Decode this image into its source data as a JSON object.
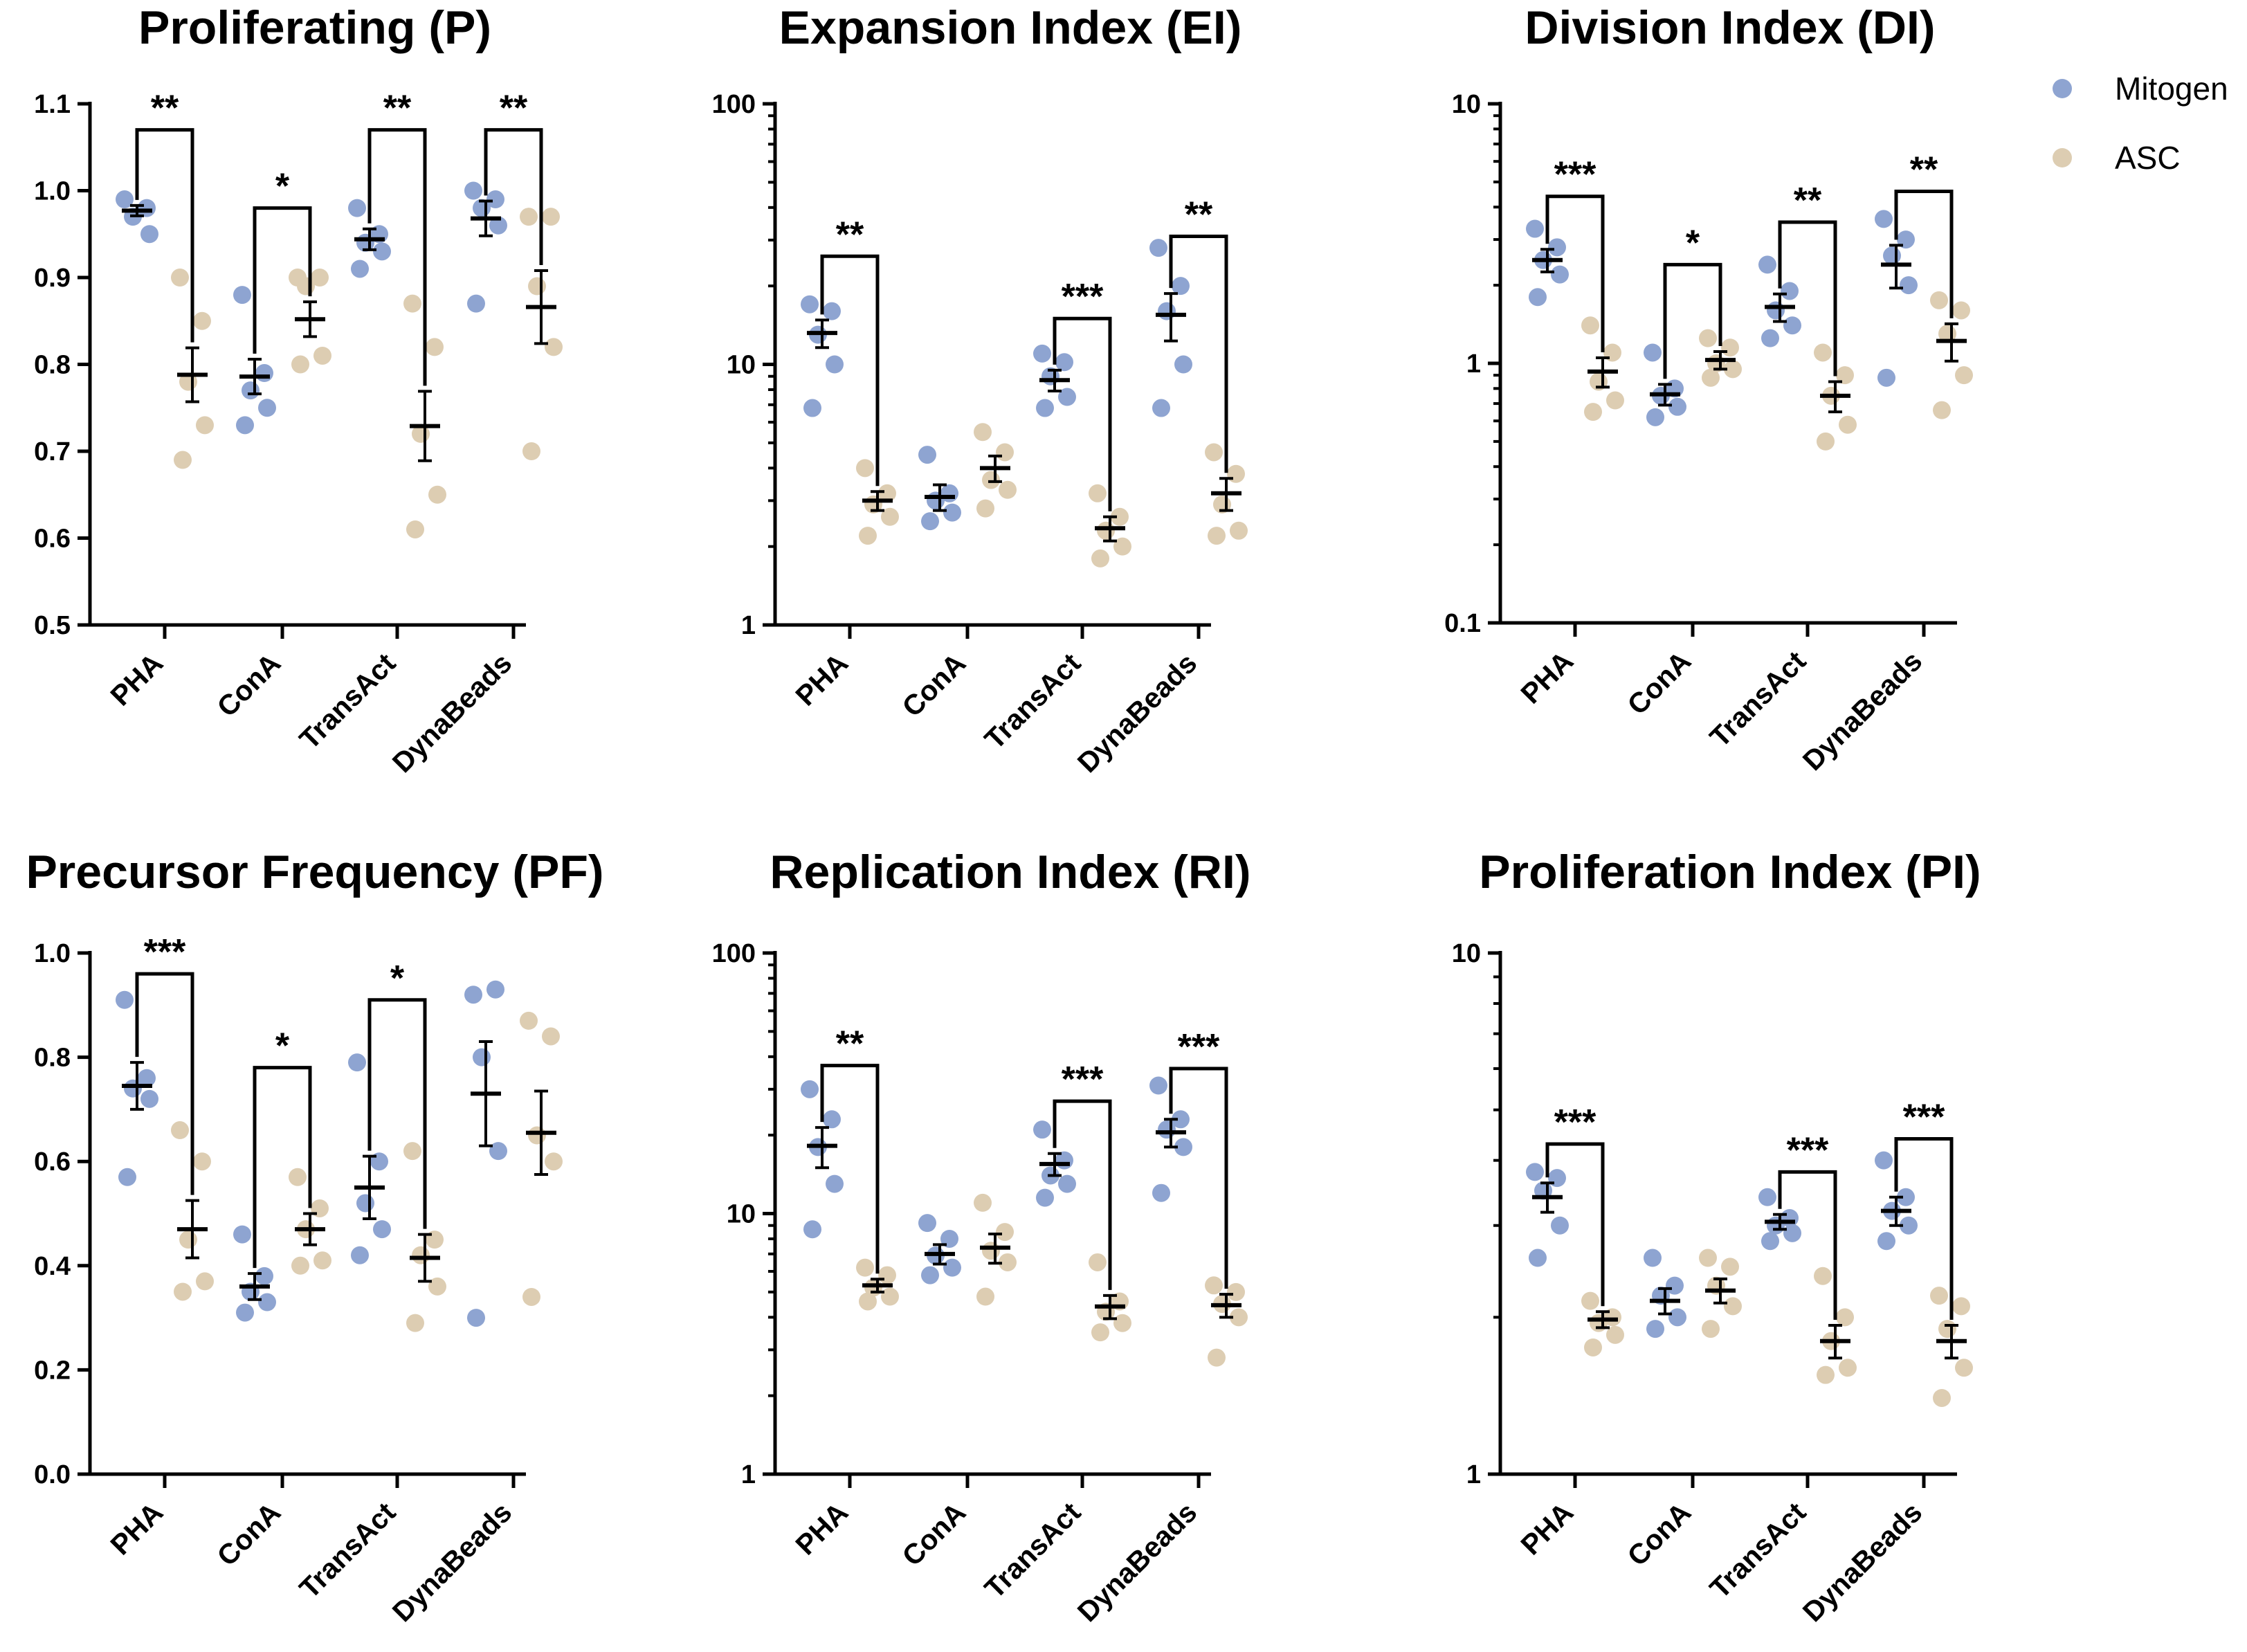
{
  "colors": {
    "mitogen": "#8ea4d1",
    "asc": "#ddcdb2",
    "axis": "#000000",
    "mean": "#000000"
  },
  "legend": {
    "placement": "top-right",
    "items": [
      {
        "label": "Mitogen",
        "color": "#8ea4d1"
      },
      {
        "label": "ASC",
        "color": "#ddcdb2"
      }
    ]
  },
  "chart_data": [
    {
      "type": "scatter",
      "title": "Proliferating (P)",
      "scale": "linear",
      "ylim": [
        0.5,
        1.1
      ],
      "ticks": [
        "0.5",
        "0.6",
        "0.7",
        "0.8",
        "0.9",
        "1.0",
        "1.1"
      ],
      "categories": [
        "PHA",
        "ConA",
        "TransAct",
        "DynaBeads"
      ],
      "series": [
        {
          "name": "Mitogen",
          "points": [
            [
              0.99,
              0.98,
              0.97,
              0.95
            ],
            [
              0.88,
              0.79,
              0.77,
              0.75,
              0.73
            ],
            [
              0.98,
              0.95,
              0.94,
              0.93,
              0.91
            ],
            [
              1.0,
              0.99,
              0.98,
              0.96,
              0.87
            ]
          ],
          "mean": [
            0.977,
            0.786,
            0.944,
            0.968
          ],
          "sem": [
            0.006,
            0.02,
            0.012,
            0.02
          ]
        },
        {
          "name": "ASC",
          "points": [
            [
              0.9,
              0.85,
              0.78,
              0.73,
              0.69
            ],
            [
              0.9,
              0.9,
              0.89,
              0.81,
              0.8
            ],
            [
              0.87,
              0.82,
              0.72,
              0.65,
              0.61
            ],
            [
              0.97,
              0.97,
              0.89,
              0.82,
              0.7
            ]
          ],
          "mean": [
            0.788,
            0.852,
            0.729,
            0.866
          ],
          "sem": [
            0.031,
            0.02,
            0.04,
            0.042
          ]
        }
      ],
      "significance": [
        {
          "category": "PHA",
          "label": "**",
          "top": 1.07
        },
        {
          "category": "ConA",
          "label": "*",
          "top": 0.98
        },
        {
          "category": "TransAct",
          "label": "**",
          "top": 1.07
        },
        {
          "category": "DynaBeads",
          "label": "**",
          "top": 1.07
        }
      ]
    },
    {
      "type": "scatter",
      "title": "Expansion Index (EI)",
      "scale": "log",
      "ylim": [
        1,
        100
      ],
      "ticks": [
        "1",
        "10",
        "100"
      ],
      "categories": [
        "PHA",
        "ConA",
        "TransAct",
        "DynaBeads"
      ],
      "series": [
        {
          "name": "Mitogen",
          "points": [
            [
              17,
              16,
              13,
              10,
              6.8
            ],
            [
              4.5,
              3.2,
              3.0,
              2.7,
              2.5
            ],
            [
              11,
              10.2,
              9,
              7.5,
              6.8
            ],
            [
              28,
              20,
              16,
              10,
              6.8
            ]
          ],
          "mean": [
            13.2,
            3.1,
            8.7,
            15.5
          ],
          "sem": [
            1.6,
            0.35,
            0.8,
            3.2
          ]
        },
        {
          "name": "ASC",
          "points": [
            [
              4.0,
              3.2,
              2.9,
              2.6,
              2.2
            ],
            [
              5.5,
              4.6,
              3.6,
              3.3,
              2.8
            ],
            [
              3.2,
              2.6,
              2.3,
              2.0,
              1.8
            ],
            [
              4.6,
              3.8,
              2.9,
              2.3,
              2.2
            ]
          ],
          "mean": [
            3.0,
            4.0,
            2.35,
            3.2
          ],
          "sem": [
            0.25,
            0.45,
            0.25,
            0.45
          ]
        }
      ],
      "significance": [
        {
          "category": "PHA",
          "label": "**",
          "top": 26
        },
        {
          "category": "TransAct",
          "label": "***",
          "top": 15
        },
        {
          "category": "DynaBeads",
          "label": "**",
          "top": 31
        }
      ]
    },
    {
      "type": "scatter",
      "title": "Division Index (DI)",
      "scale": "log",
      "ylim": [
        0.1,
        10
      ],
      "ticks": [
        "0.1",
        "1",
        "10"
      ],
      "categories": [
        "PHA",
        "ConA",
        "TransAct",
        "DynaBeads"
      ],
      "series": [
        {
          "name": "Mitogen",
          "points": [
            [
              3.3,
              2.8,
              2.5,
              2.2,
              1.8
            ],
            [
              1.1,
              0.8,
              0.75,
              0.68,
              0.62
            ],
            [
              2.4,
              1.9,
              1.6,
              1.4,
              1.25
            ],
            [
              3.6,
              3.0,
              2.6,
              2.0,
              0.88
            ]
          ],
          "mean": [
            2.5,
            0.76,
            1.65,
            2.4
          ],
          "sem": [
            0.25,
            0.07,
            0.2,
            0.45
          ]
        },
        {
          "name": "ASC",
          "points": [
            [
              1.4,
              1.1,
              0.85,
              0.72,
              0.65
            ],
            [
              1.25,
              1.15,
              1.0,
              0.95,
              0.88
            ],
            [
              1.1,
              0.9,
              0.75,
              0.58,
              0.5
            ],
            [
              1.75,
              1.6,
              1.3,
              0.9,
              0.66
            ]
          ],
          "mean": [
            0.93,
            1.03,
            0.75,
            1.22
          ],
          "sem": [
            0.12,
            0.08,
            0.1,
            0.2
          ]
        }
      ],
      "significance": [
        {
          "category": "PHA",
          "label": "***",
          "top": 4.4
        },
        {
          "category": "ConA",
          "label": "*",
          "top": 2.4
        },
        {
          "category": "TransAct",
          "label": "**",
          "top": 3.5
        },
        {
          "category": "DynaBeads",
          "label": "**",
          "top": 4.6
        }
      ]
    },
    {
      "type": "scatter",
      "title": "Precursor Frequency (PF)",
      "scale": "linear",
      "ylim": [
        0.0,
        1.0
      ],
      "ticks": [
        "0.0",
        "0.2",
        "0.4",
        "0.6",
        "0.8",
        "1.0"
      ],
      "categories": [
        "PHA",
        "ConA",
        "TransAct",
        "DynaBeads"
      ],
      "series": [
        {
          "name": "Mitogen",
          "points": [
            [
              0.91,
              0.76,
              0.74,
              0.72,
              0.57
            ],
            [
              0.46,
              0.38,
              0.35,
              0.33,
              0.31
            ],
            [
              0.79,
              0.6,
              0.52,
              0.47,
              0.42
            ],
            [
              0.92,
              0.93,
              0.8,
              0.62,
              0.3
            ]
          ],
          "mean": [
            0.745,
            0.36,
            0.55,
            0.73
          ],
          "sem": [
            0.045,
            0.025,
            0.06,
            0.1
          ]
        },
        {
          "name": "ASC",
          "points": [
            [
              0.66,
              0.6,
              0.45,
              0.37,
              0.35
            ],
            [
              0.57,
              0.51,
              0.47,
              0.41,
              0.4
            ],
            [
              0.62,
              0.45,
              0.42,
              0.36,
              0.29
            ],
            [
              0.87,
              0.84,
              0.65,
              0.6,
              0.34
            ]
          ],
          "mean": [
            0.47,
            0.47,
            0.415,
            0.655
          ],
          "sem": [
            0.055,
            0.03,
            0.045,
            0.08
          ]
        }
      ],
      "significance": [
        {
          "category": "PHA",
          "label": "***",
          "top": 0.96
        },
        {
          "category": "ConA",
          "label": "*",
          "top": 0.78
        },
        {
          "category": "TransAct",
          "label": "*",
          "top": 0.91
        }
      ]
    },
    {
      "type": "scatter",
      "title": "Replication Index (RI)",
      "scale": "log",
      "ylim": [
        1,
        100
      ],
      "ticks": [
        "1",
        "10",
        "100"
      ],
      "categories": [
        "PHA",
        "ConA",
        "TransAct",
        "DynaBeads"
      ],
      "series": [
        {
          "name": "Mitogen",
          "points": [
            [
              30,
              23,
              18,
              13,
              8.7
            ],
            [
              9.2,
              8.0,
              6.9,
              6.2,
              5.8
            ],
            [
              21,
              16,
              14,
              13,
              11.5
            ],
            [
              31,
              23,
              21,
              18,
              12
            ]
          ],
          "mean": [
            18.2,
            7.0,
            15.5,
            20.5
          ],
          "sem": [
            3.2,
            0.6,
            1.5,
            2.5
          ]
        },
        {
          "name": "ASC",
          "points": [
            [
              6.2,
              5.8,
              5.2,
              4.8,
              4.6
            ],
            [
              11,
              8.5,
              7.2,
              6.5,
              4.8
            ],
            [
              6.5,
              4.6,
              4.2,
              3.8,
              3.5
            ],
            [
              5.3,
              5.0,
              4.5,
              4.0,
              2.8
            ]
          ],
          "mean": [
            5.3,
            7.4,
            4.4,
            4.45
          ],
          "sem": [
            0.3,
            0.95,
            0.45,
            0.45
          ]
        }
      ],
      "significance": [
        {
          "category": "PHA",
          "label": "**",
          "top": 37
        },
        {
          "category": "TransAct",
          "label": "***",
          "top": 27
        },
        {
          "category": "DynaBeads",
          "label": "***",
          "top": 36
        }
      ]
    },
    {
      "type": "scatter",
      "title": "Proliferation Index (PI)",
      "scale": "log",
      "ylim": [
        1,
        10
      ],
      "ticks": [
        "1",
        "10"
      ],
      "categories": [
        "PHA",
        "ConA",
        "TransAct",
        "DynaBeads"
      ],
      "series": [
        {
          "name": "Mitogen",
          "points": [
            [
              3.8,
              3.7,
              3.5,
              3.0,
              2.6
            ],
            [
              2.6,
              2.3,
              2.2,
              2.0,
              1.9
            ],
            [
              3.4,
              3.1,
              3.0,
              2.9,
              2.8
            ],
            [
              4.0,
              3.4,
              3.2,
              3.0,
              2.8
            ]
          ],
          "mean": [
            3.4,
            2.15,
            3.05,
            3.2
          ],
          "sem": [
            0.22,
            0.12,
            0.1,
            0.2
          ]
        },
        {
          "name": "ASC",
          "points": [
            [
              2.15,
              2.0,
              1.95,
              1.85,
              1.75
            ],
            [
              2.6,
              2.5,
              2.3,
              2.1,
              1.9
            ],
            [
              2.4,
              2.0,
              1.8,
              1.6,
              1.55
            ],
            [
              2.2,
              2.1,
              1.9,
              1.6,
              1.4
            ]
          ],
          "mean": [
            1.98,
            2.25,
            1.8,
            1.8
          ],
          "sem": [
            0.07,
            0.12,
            0.13,
            0.13
          ]
        }
      ],
      "significance": [
        {
          "category": "PHA",
          "label": "***",
          "top": 4.3
        },
        {
          "category": "TransAct",
          "label": "***",
          "top": 3.8
        },
        {
          "category": "DynaBeads",
          "label": "***",
          "top": 4.4
        }
      ]
    }
  ]
}
